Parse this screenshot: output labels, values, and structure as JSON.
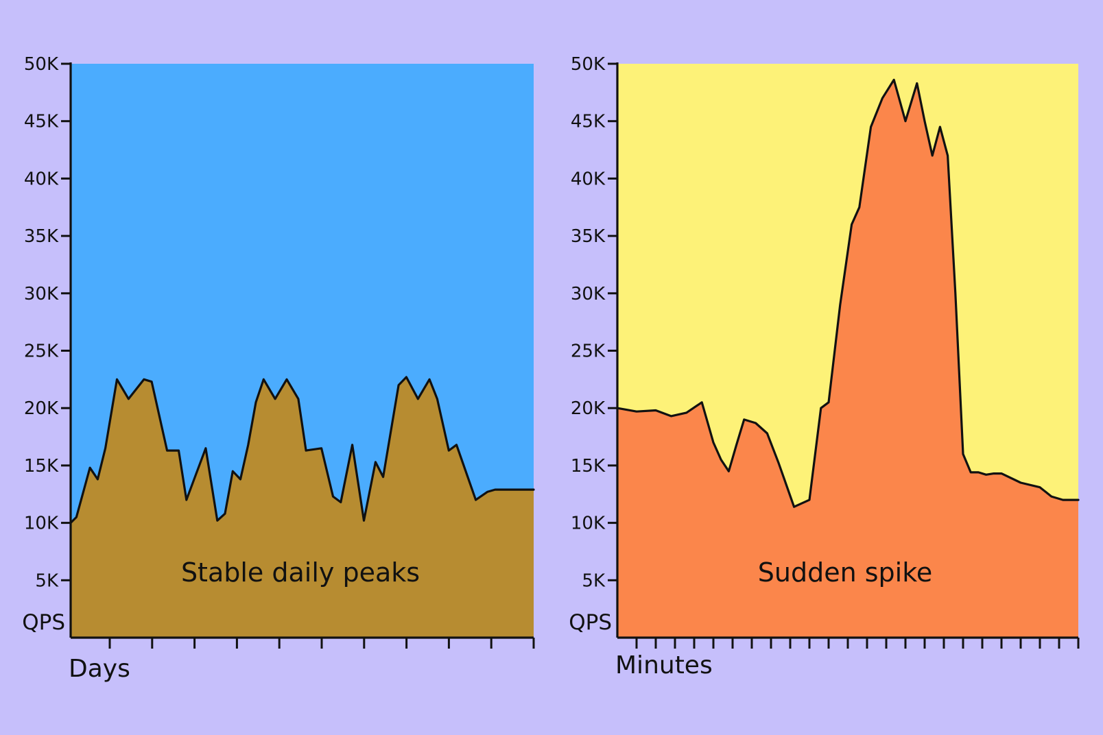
{
  "chart_data": [
    {
      "type": "area",
      "annotation": "Stable daily peaks",
      "xlabel": "Days",
      "ylabel": "QPS",
      "yticks": [
        "5K",
        "10K",
        "15K",
        "20K",
        "25K",
        "30K",
        "35K",
        "40K",
        "45K",
        "50K"
      ],
      "ylim": [
        0,
        50000
      ],
      "xlim": [
        0,
        12
      ],
      "x_tick_count": 11,
      "grid": false,
      "colors": {
        "background": "#4bacfe",
        "area": "#b78c31",
        "line": "#111111"
      },
      "x": [
        0,
        0.15,
        0.5,
        0.7,
        0.9,
        1.2,
        1.5,
        1.9,
        2.1,
        2.5,
        2.8,
        3.0,
        3.2,
        3.5,
        3.8,
        4.0,
        4.2,
        4.4,
        4.6,
        4.8,
        5.0,
        5.3,
        5.6,
        5.9,
        6.1,
        6.5,
        6.8,
        7.0,
        7.3,
        7.6,
        7.9,
        8.1,
        8.5,
        8.7,
        9.0,
        9.3,
        9.5,
        9.8,
        10.0,
        10.5,
        10.8,
        11.0,
        11.3,
        11.6,
        11.8,
        12.0
      ],
      "values": [
        10000,
        10500,
        14800,
        13800,
        16500,
        22500,
        20800,
        22500,
        22300,
        16300,
        16300,
        12000,
        13800,
        16500,
        10200,
        10800,
        14500,
        13800,
        16800,
        20500,
        22500,
        20800,
        22500,
        20800,
        16300,
        16500,
        12300,
        11800,
        16800,
        10200,
        15300,
        14000,
        22000,
        22700,
        20800,
        22500,
        20800,
        16300,
        16800,
        12000,
        12700,
        12900,
        12900,
        12900,
        12900,
        12900
      ]
    },
    {
      "type": "area",
      "annotation": "Sudden spike",
      "xlabel": "Minutes",
      "ylabel": "QPS",
      "yticks": [
        "5K",
        "10K",
        "15K",
        "20K",
        "25K",
        "30K",
        "35K",
        "40K",
        "45K",
        "50K"
      ],
      "ylim": [
        0,
        50000
      ],
      "xlim": [
        0,
        12
      ],
      "x_tick_count": 24,
      "grid": false,
      "colors": {
        "background": "#fdf278",
        "area": "#fb864b",
        "line": "#111111"
      },
      "x": [
        0,
        0.5,
        1.0,
        1.4,
        1.8,
        2.2,
        2.5,
        2.7,
        2.9,
        3.1,
        3.3,
        3.6,
        3.9,
        4.2,
        4.6,
        5.0,
        5.3,
        5.5,
        5.8,
        6.1,
        6.3,
        6.6,
        6.9,
        7.2,
        7.5,
        7.8,
        8.0,
        8.2,
        8.4,
        8.6,
        8.8,
        9.0,
        9.2,
        9.4,
        9.6,
        9.8,
        10.0,
        10.5,
        11.0,
        11.3,
        11.6,
        12.0
      ],
      "values": [
        20000,
        19700,
        19800,
        19300,
        19600,
        20500,
        17000,
        15500,
        14500,
        16800,
        19000,
        18700,
        17800,
        15200,
        11400,
        12000,
        20000,
        20500,
        29000,
        36000,
        37500,
        44500,
        47000,
        48600,
        45000,
        48300,
        45000,
        42000,
        44500,
        42000,
        30000,
        16000,
        14400,
        14400,
        14200,
        14300,
        14300,
        13500,
        13100,
        12300,
        12000,
        12000
      ]
    }
  ]
}
